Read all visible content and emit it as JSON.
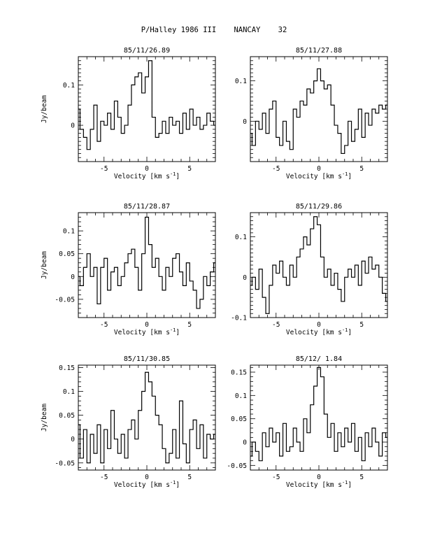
{
  "page": {
    "title": "P/Halley 1986 III    NANCAY    32"
  },
  "chart_data": [
    {
      "type": "line",
      "title": "85/11/26.89",
      "xlabel": "Velocity [km s^-1]",
      "ylabel": "Jy/beam",
      "xlim": [
        -8,
        8
      ],
      "ylim": [
        -0.09,
        0.17
      ],
      "xticks": [
        -5,
        0,
        5
      ],
      "yticks": [
        0,
        0.1
      ],
      "ytick_labels": [
        "0",
        "0.1"
      ],
      "series": [
        {
          "x": [
            -8.0,
            -7.6,
            -7.2,
            -6.8,
            -6.4,
            -6.0,
            -5.6,
            -5.2,
            -4.8,
            -4.4,
            -4.0,
            -3.6,
            -3.2,
            -2.8,
            -2.4,
            -2.0,
            -1.6,
            -1.2,
            -0.8,
            -0.4,
            0.0,
            0.4,
            0.8,
            1.2,
            1.6,
            2.0,
            2.4,
            2.8,
            3.2,
            3.6,
            4.0,
            4.4,
            4.8,
            5.2,
            5.6,
            6.0,
            6.4,
            6.8,
            7.2,
            7.6,
            8.0
          ],
          "y": [
            0.04,
            -0.01,
            -0.03,
            -0.06,
            -0.01,
            0.05,
            -0.04,
            0.01,
            0.0,
            0.03,
            -0.01,
            0.06,
            0.02,
            -0.02,
            0.0,
            0.05,
            0.1,
            0.12,
            0.13,
            0.08,
            0.12,
            0.16,
            0.02,
            -0.03,
            -0.02,
            0.01,
            -0.02,
            0.02,
            0.0,
            0.01,
            -0.02,
            0.03,
            -0.01,
            0.04,
            0.0,
            0.02,
            -0.01,
            0.0,
            0.03,
            0.01,
            0.0
          ]
        }
      ]
    },
    {
      "type": "line",
      "title": "85/11/27.88",
      "xlabel": "Velocity [km s^-1]",
      "ylabel": "",
      "xlim": [
        -8,
        8
      ],
      "ylim": [
        -0.1,
        0.16
      ],
      "xticks": [
        -5,
        0,
        5
      ],
      "yticks": [
        0,
        0.1
      ],
      "ytick_labels": [
        "0",
        "0.1"
      ],
      "series": [
        {
          "x": [
            -8.0,
            -7.6,
            -7.2,
            -6.8,
            -6.4,
            -6.0,
            -5.6,
            -5.2,
            -4.8,
            -4.4,
            -4.0,
            -3.6,
            -3.2,
            -2.8,
            -2.4,
            -2.0,
            -1.6,
            -1.2,
            -0.8,
            -0.4,
            0.0,
            0.4,
            0.8,
            1.2,
            1.6,
            2.0,
            2.4,
            2.8,
            3.2,
            3.6,
            4.0,
            4.4,
            4.8,
            5.2,
            5.6,
            6.0,
            6.4,
            6.8,
            7.2,
            7.6,
            8.0
          ],
          "y": [
            -0.03,
            -0.06,
            0.0,
            -0.02,
            0.02,
            -0.03,
            0.03,
            0.05,
            -0.04,
            -0.06,
            0.0,
            -0.05,
            -0.07,
            0.03,
            0.01,
            0.05,
            0.04,
            0.08,
            0.07,
            0.1,
            0.13,
            0.1,
            0.08,
            0.09,
            0.04,
            -0.01,
            -0.03,
            -0.08,
            -0.06,
            0.0,
            -0.05,
            -0.02,
            0.03,
            -0.04,
            0.02,
            -0.01,
            0.03,
            0.02,
            0.04,
            0.03,
            0.04
          ]
        }
      ]
    },
    {
      "type": "line",
      "title": "85/11/28.87",
      "xlabel": "Velocity [km s^-1]",
      "ylabel": "Jy/beam",
      "xlim": [
        -8,
        8
      ],
      "ylim": [
        -0.09,
        0.14
      ],
      "xticks": [
        -5,
        0,
        5
      ],
      "yticks": [
        -0.05,
        0,
        0.05,
        0.1
      ],
      "ytick_labels": [
        "-0.05",
        "0",
        "0.05",
        "0.1"
      ],
      "series": [
        {
          "x": [
            -8.0,
            -7.6,
            -7.2,
            -6.8,
            -6.4,
            -6.0,
            -5.6,
            -5.2,
            -4.8,
            -4.4,
            -4.0,
            -3.6,
            -3.2,
            -2.8,
            -2.4,
            -2.0,
            -1.6,
            -1.2,
            -0.8,
            -0.4,
            0.0,
            0.4,
            0.8,
            1.2,
            1.6,
            2.0,
            2.4,
            2.8,
            3.2,
            3.6,
            4.0,
            4.4,
            4.8,
            5.2,
            5.6,
            6.0,
            6.4,
            6.8,
            7.2,
            7.6,
            8.0
          ],
          "y": [
            0.0,
            -0.02,
            0.02,
            0.05,
            0.0,
            0.02,
            -0.06,
            0.02,
            0.04,
            -0.03,
            0.01,
            0.02,
            -0.02,
            0.0,
            0.03,
            0.05,
            0.06,
            0.02,
            -0.03,
            0.05,
            0.13,
            0.07,
            0.02,
            0.04,
            0.0,
            -0.03,
            0.02,
            0.0,
            0.04,
            0.05,
            0.01,
            -0.02,
            0.03,
            -0.01,
            -0.03,
            -0.07,
            -0.05,
            0.0,
            -0.02,
            0.01,
            0.03
          ]
        }
      ]
    },
    {
      "type": "line",
      "title": "85/11/29.86",
      "xlabel": "Velocity [km s^-1]",
      "ylabel": "",
      "xlim": [
        -8,
        8
      ],
      "ylim": [
        -0.1,
        0.16
      ],
      "xticks": [
        -5,
        0,
        5
      ],
      "yticks": [
        -0.1,
        0,
        0.1
      ],
      "ytick_labels": [
        "-0.1",
        "0",
        "0.1"
      ],
      "series": [
        {
          "x": [
            -8.0,
            -7.6,
            -7.2,
            -6.8,
            -6.4,
            -6.0,
            -5.6,
            -5.2,
            -4.8,
            -4.4,
            -4.0,
            -3.6,
            -3.2,
            -2.8,
            -2.4,
            -2.0,
            -1.6,
            -1.2,
            -0.8,
            -0.4,
            0.0,
            0.4,
            0.8,
            1.2,
            1.6,
            2.0,
            2.4,
            2.8,
            3.2,
            3.6,
            4.0,
            4.4,
            4.8,
            5.2,
            5.6,
            6.0,
            6.4,
            6.8,
            7.2,
            7.6,
            8.0
          ],
          "y": [
            -0.02,
            0.0,
            -0.03,
            0.02,
            -0.05,
            -0.09,
            -0.02,
            0.03,
            0.01,
            0.04,
            0.0,
            -0.02,
            0.03,
            0.0,
            0.05,
            0.07,
            0.1,
            0.08,
            0.12,
            0.15,
            0.13,
            0.05,
            0.0,
            0.02,
            -0.02,
            0.01,
            -0.03,
            -0.06,
            0.0,
            0.02,
            0.0,
            0.03,
            -0.02,
            0.04,
            0.01,
            0.05,
            0.02,
            0.03,
            0.0,
            -0.04,
            -0.06
          ]
        }
      ]
    },
    {
      "type": "line",
      "title": "85/11/30.85",
      "xlabel": "Velocity [km s^-1]",
      "ylabel": "Jy/beam",
      "xlim": [
        -8,
        8
      ],
      "ylim": [
        -0.065,
        0.155
      ],
      "xticks": [
        -5,
        0,
        5
      ],
      "yticks": [
        -0.05,
        0,
        0.05,
        0.1,
        0.15
      ],
      "ytick_labels": [
        "-0.05",
        "0",
        "0.05",
        "0.1",
        "0.15"
      ],
      "series": [
        {
          "x": [
            -8.0,
            -7.6,
            -7.2,
            -6.8,
            -6.4,
            -6.0,
            -5.6,
            -5.2,
            -4.8,
            -4.4,
            -4.0,
            -3.6,
            -3.2,
            -2.8,
            -2.4,
            -2.0,
            -1.6,
            -1.2,
            -0.8,
            -0.4,
            0.0,
            0.4,
            0.8,
            1.2,
            1.6,
            2.0,
            2.4,
            2.8,
            3.2,
            3.6,
            4.0,
            4.4,
            4.8,
            5.2,
            5.6,
            6.0,
            6.4,
            6.8,
            7.2,
            7.6,
            8.0
          ],
          "y": [
            0.03,
            -0.04,
            0.02,
            -0.05,
            0.01,
            -0.03,
            0.03,
            -0.05,
            0.02,
            -0.02,
            0.06,
            0.0,
            -0.03,
            0.01,
            -0.04,
            0.02,
            0.04,
            0.0,
            0.06,
            0.1,
            0.14,
            0.12,
            0.09,
            0.05,
            0.03,
            -0.02,
            -0.05,
            -0.03,
            0.02,
            -0.04,
            0.08,
            -0.01,
            -0.05,
            0.02,
            0.04,
            -0.02,
            0.03,
            -0.04,
            0.01,
            0.0,
            0.01
          ]
        }
      ]
    },
    {
      "type": "line",
      "title": "85/12/ 1.84",
      "xlabel": "Velocity [km s^-1]",
      "ylabel": "",
      "xlim": [
        -8,
        8
      ],
      "ylim": [
        -0.06,
        0.165
      ],
      "xticks": [
        -5,
        0,
        5
      ],
      "yticks": [
        -0.05,
        0,
        0.05,
        0.1,
        0.15
      ],
      "ytick_labels": [
        "-0.05",
        "0",
        "0.05",
        "0.1",
        "0.15"
      ],
      "series": [
        {
          "x": [
            -8.0,
            -7.6,
            -7.2,
            -6.8,
            -6.4,
            -6.0,
            -5.6,
            -5.2,
            -4.8,
            -4.4,
            -4.0,
            -3.6,
            -3.2,
            -2.8,
            -2.4,
            -2.0,
            -1.6,
            -1.2,
            -0.8,
            -0.4,
            0.0,
            0.4,
            0.8,
            1.2,
            1.6,
            2.0,
            2.4,
            2.8,
            3.2,
            3.6,
            4.0,
            4.4,
            4.8,
            5.2,
            5.6,
            6.0,
            6.4,
            6.8,
            7.2,
            7.6,
            8.0
          ],
          "y": [
            -0.03,
            0.0,
            -0.02,
            -0.04,
            0.02,
            -0.01,
            0.03,
            0.0,
            0.02,
            -0.03,
            0.04,
            -0.02,
            -0.01,
            0.03,
            0.0,
            -0.02,
            0.05,
            0.02,
            0.08,
            0.12,
            0.16,
            0.14,
            0.06,
            0.01,
            0.04,
            -0.02,
            0.02,
            -0.01,
            0.03,
            0.0,
            0.04,
            -0.02,
            0.01,
            -0.04,
            0.02,
            -0.01,
            0.03,
            0.0,
            -0.03,
            0.02,
            0.01
          ]
        }
      ]
    }
  ]
}
